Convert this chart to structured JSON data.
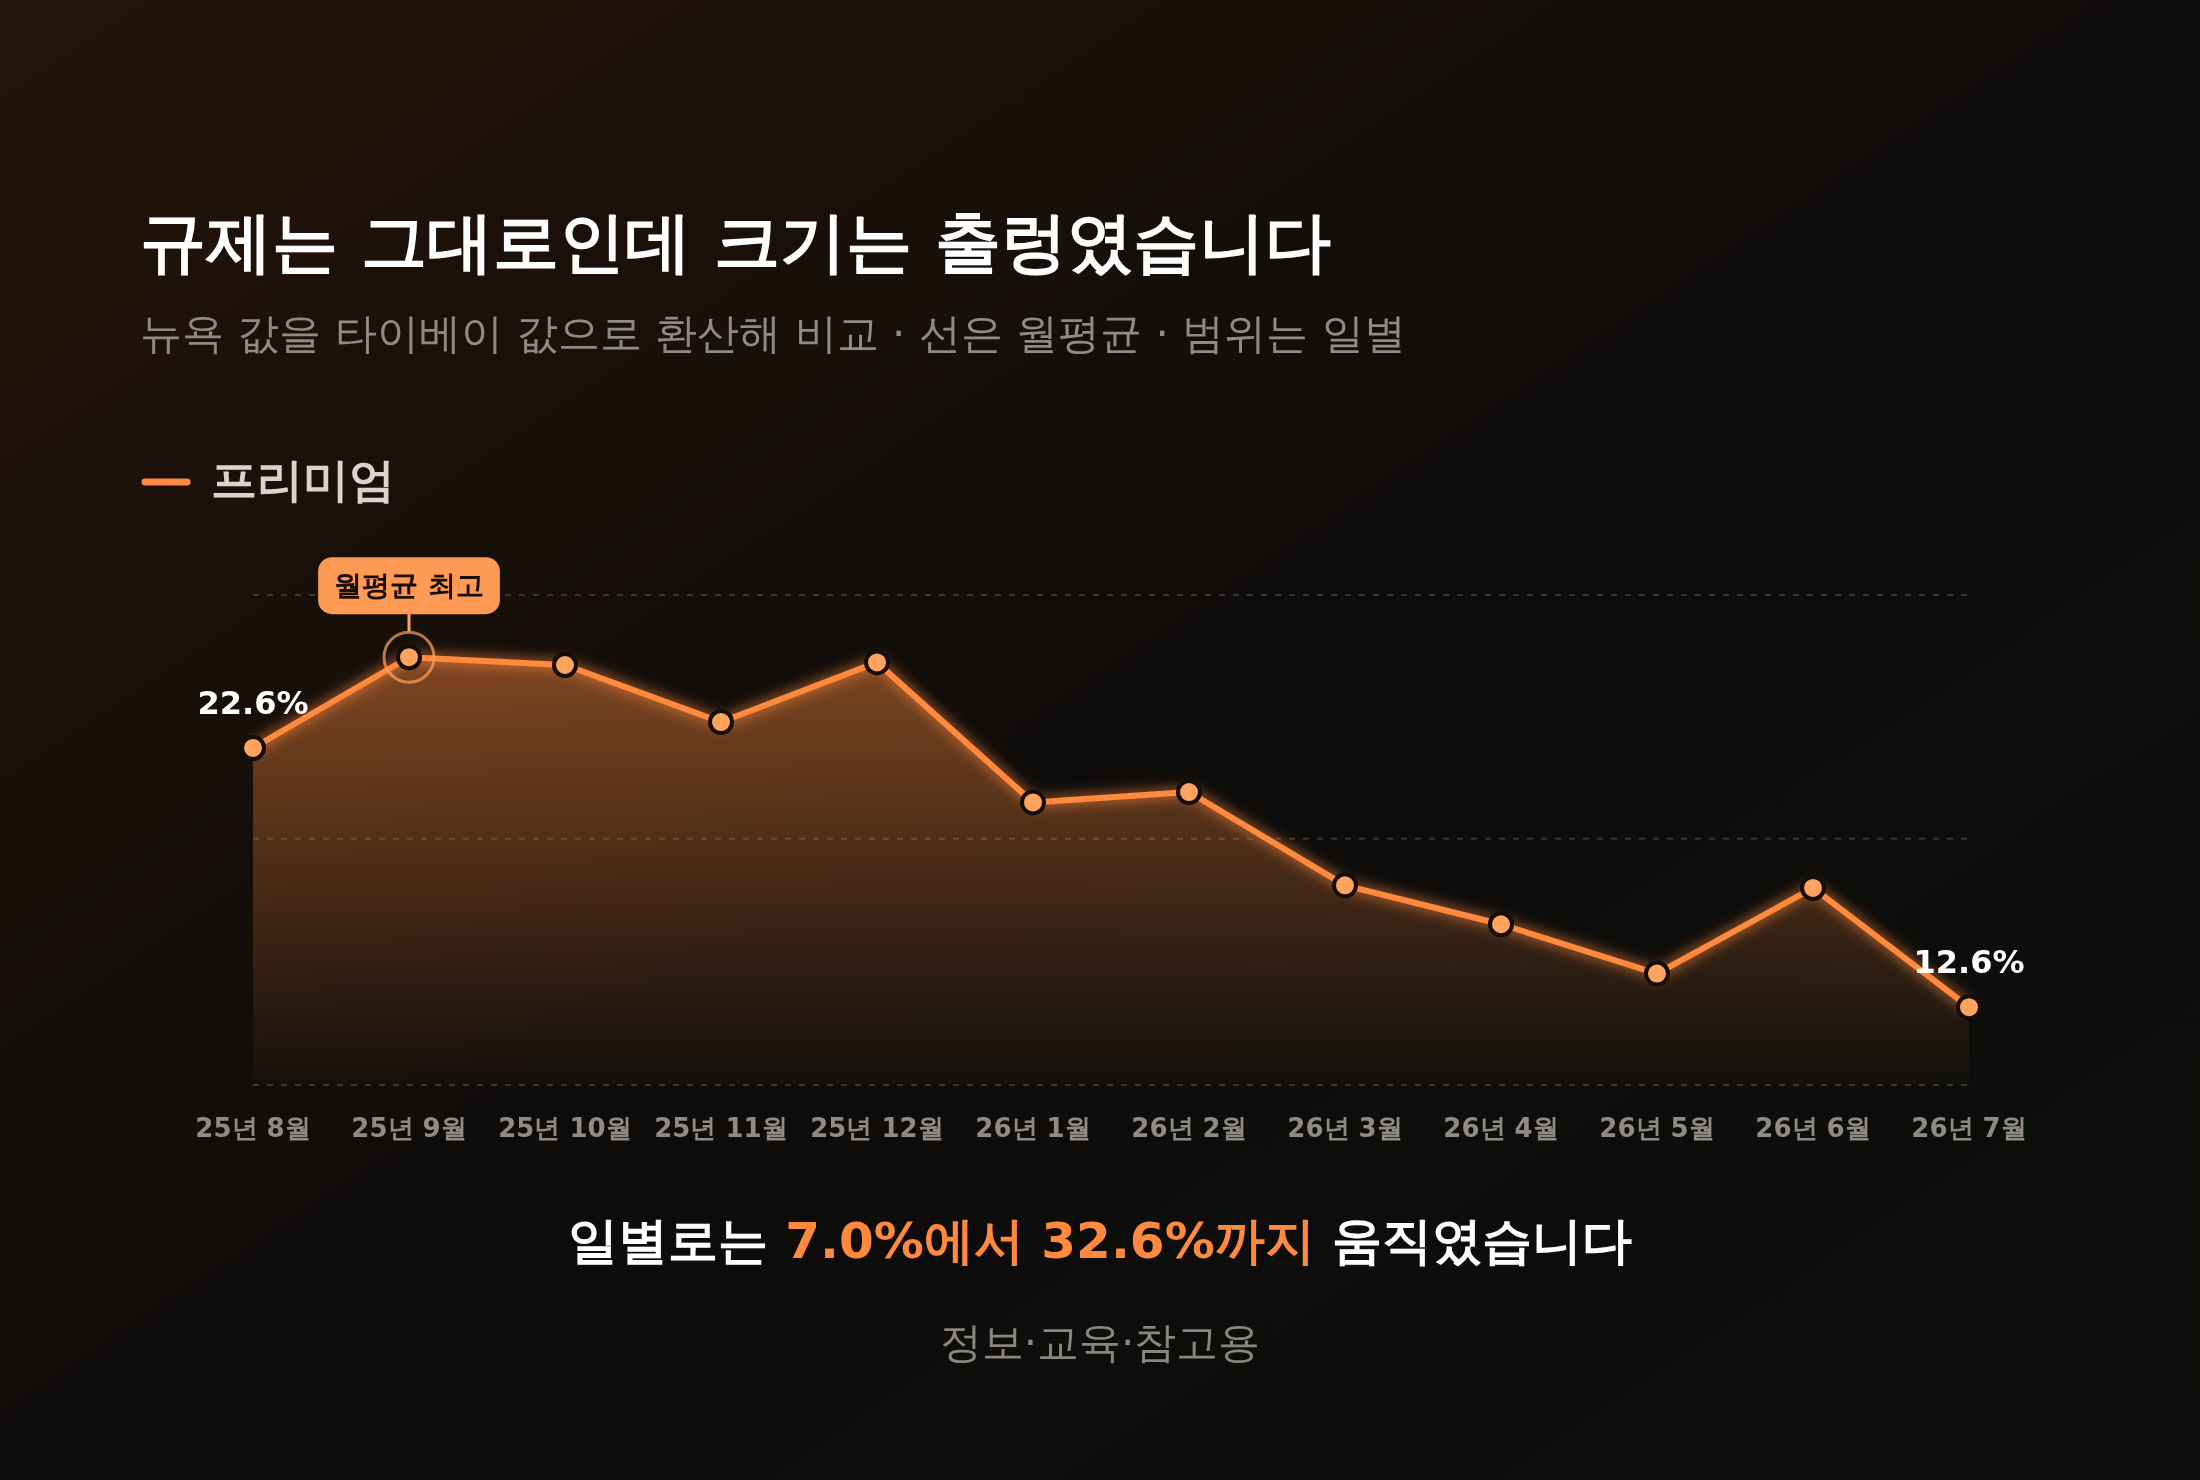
{
  "chart_data": {
    "type": "area",
    "title": "규제는 그대로인데 크기는 출렁였습니다",
    "subtitle": "뉴욕 값을 타이베이 값으로 환산해 비교 · 선은 월평균 · 범위는 일별",
    "categories": [
      "25년 8월",
      "25년 9월",
      "25년 10월",
      "25년 11월",
      "25년 12월",
      "26년 1월",
      "26년 2월",
      "26년 3월",
      "26년 4월",
      "26년 5월",
      "26년 6월",
      "26년 7월"
    ],
    "series": [
      {
        "name": "프리미엄",
        "color": "#ff8a3d",
        "values": [
          22.6,
          26.1,
          25.8,
          23.6,
          25.9,
          20.5,
          20.9,
          17.3,
          15.8,
          13.9,
          17.2,
          12.6
        ],
        "value_labels": [
          "22.6%",
          null,
          null,
          null,
          null,
          null,
          null,
          null,
          null,
          null,
          null,
          "12.6%"
        ]
      }
    ],
    "ylim": [
      9.6,
      28.5
    ],
    "yticks": [
      {
        "value": 9.6,
        "label": null
      },
      {
        "value": 19.1,
        "label": null
      },
      {
        "value": 28.5,
        "label": null
      }
    ],
    "tick_labels": "x",
    "grid": "y",
    "legend": "top left",
    "marker": "circle",
    "line_style": "solid",
    "annotations": [
      {
        "text": "월평균 최고",
        "x": "25년 9월",
        "y": 26.1
      },
      "일별로는 7.0%에서 32.6%까지 움직였습니다",
      "정보·교육·참고용"
    ]
  }
}
